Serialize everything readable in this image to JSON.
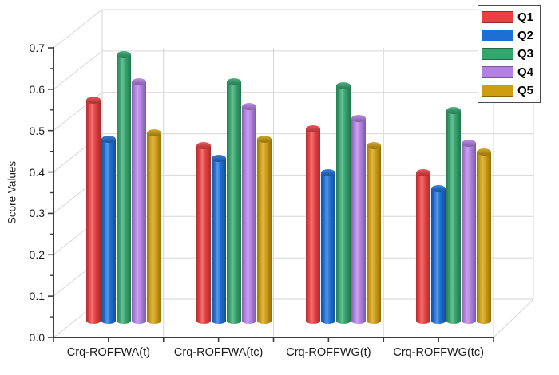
{
  "chart_data": {
    "type": "bar",
    "bar_style": "3d-cylinder",
    "title": "",
    "xlabel": "",
    "ylabel": "Score Values",
    "categories": [
      "Crq-ROFFWA(t)",
      "Crq-ROFFWA(tc)",
      "Crq-ROFFWG(t)",
      "Crq-ROFFWG(tc)"
    ],
    "series": [
      {
        "name": "Q1",
        "color": "#e84142",
        "values": [
          0.54,
          0.43,
          0.47,
          0.365
        ]
      },
      {
        "name": "Q2",
        "color": "#1e6fd4",
        "values": [
          0.445,
          0.4,
          0.365,
          0.325
        ]
      },
      {
        "name": "Q3",
        "color": "#34a56d",
        "values": [
          0.65,
          0.585,
          0.575,
          0.515
        ]
      },
      {
        "name": "Q4",
        "color": "#b381e2",
        "values": [
          0.585,
          0.525,
          0.495,
          0.435
        ]
      },
      {
        "name": "Q5",
        "color": "#cf9d10",
        "values": [
          0.46,
          0.445,
          0.43,
          0.415
        ]
      }
    ],
    "ylim": [
      0.0,
      0.7
    ],
    "ytick_step": 0.1,
    "ytick_minor_step": 0.05,
    "ytick_labels": [
      "0.0",
      "0.1",
      "0.2",
      "0.3",
      "0.4",
      "0.5",
      "0.6",
      "0.7"
    ],
    "grid": true,
    "legend_position": "top-right",
    "legend_entries": [
      "Q1",
      "Q2",
      "Q3",
      "Q4",
      "Q5"
    ],
    "axis_color": "#3c3c3c",
    "grid_color": "#d6d6d6",
    "text_color": "#1a1a1a",
    "background_color": "#ffffff"
  }
}
